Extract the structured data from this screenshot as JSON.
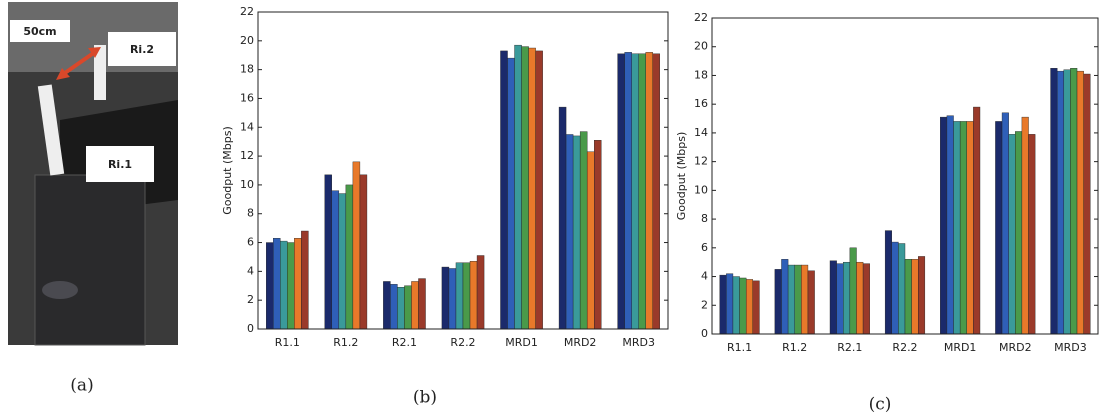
{
  "photo": {
    "distance": "50cm",
    "upper_label": "Ri.2",
    "lower_label": "Ri.1"
  },
  "captions": [
    "(a)",
    "(b)",
    "(c)"
  ],
  "chart_data": [
    {
      "type": "bar",
      "y_label": "Goodput (Mbps)",
      "categories": [
        "R1.1",
        "R1.2",
        "R2.1",
        "R2.2",
        "MRD1",
        "MRD2",
        "MRD3"
      ],
      "ylim": [
        0,
        22
      ],
      "yticks": [
        0,
        2,
        4,
        6,
        8,
        10,
        12,
        14,
        16,
        18,
        20,
        22
      ],
      "series": [
        {
          "color": "#1b2a6b",
          "values": [
            6.0,
            10.7,
            3.3,
            4.3,
            19.3,
            15.4,
            19.1
          ]
        },
        {
          "color": "#2f5fb8",
          "values": [
            6.3,
            9.6,
            3.1,
            4.2,
            18.8,
            13.5,
            19.2
          ]
        },
        {
          "color": "#3a9a9a",
          "values": [
            6.1,
            9.4,
            2.9,
            4.6,
            19.7,
            13.4,
            19.1
          ]
        },
        {
          "color": "#4a9a4a",
          "values": [
            6.0,
            10.0,
            3.0,
            4.6,
            19.6,
            13.7,
            19.1
          ]
        },
        {
          "color": "#e8792a",
          "values": [
            6.3,
            11.6,
            3.3,
            4.7,
            19.5,
            12.3,
            19.2
          ]
        },
        {
          "color": "#9a3a2a",
          "values": [
            6.8,
            10.7,
            3.5,
            5.1,
            19.3,
            13.1,
            19.1
          ]
        }
      ]
    },
    {
      "type": "bar",
      "y_label": "Goodput (Mbps)",
      "categories": [
        "R1.1",
        "R1.2",
        "R2.1",
        "R2.2",
        "MRD1",
        "MRD2",
        "MRD3"
      ],
      "ylim": [
        0,
        22
      ],
      "yticks": [
        0,
        2,
        4,
        6,
        8,
        10,
        12,
        14,
        16,
        18,
        20,
        22
      ],
      "series": [
        {
          "color": "#1b2a6b",
          "values": [
            4.1,
            4.5,
            5.1,
            7.2,
            15.1,
            14.8,
            18.5
          ]
        },
        {
          "color": "#2f5fb8",
          "values": [
            4.2,
            5.2,
            4.9,
            6.4,
            15.2,
            15.4,
            18.3
          ]
        },
        {
          "color": "#3a9a9a",
          "values": [
            4.0,
            4.8,
            5.0,
            6.3,
            14.8,
            13.9,
            18.4
          ]
        },
        {
          "color": "#4a9a4a",
          "values": [
            3.9,
            4.8,
            6.0,
            5.2,
            14.8,
            14.1,
            18.5
          ]
        },
        {
          "color": "#e8792a",
          "values": [
            3.8,
            4.8,
            5.0,
            5.2,
            14.8,
            15.1,
            18.3
          ]
        },
        {
          "color": "#9a3a2a",
          "values": [
            3.7,
            4.4,
            4.9,
            5.4,
            15.8,
            13.9,
            18.1
          ]
        }
      ]
    }
  ]
}
